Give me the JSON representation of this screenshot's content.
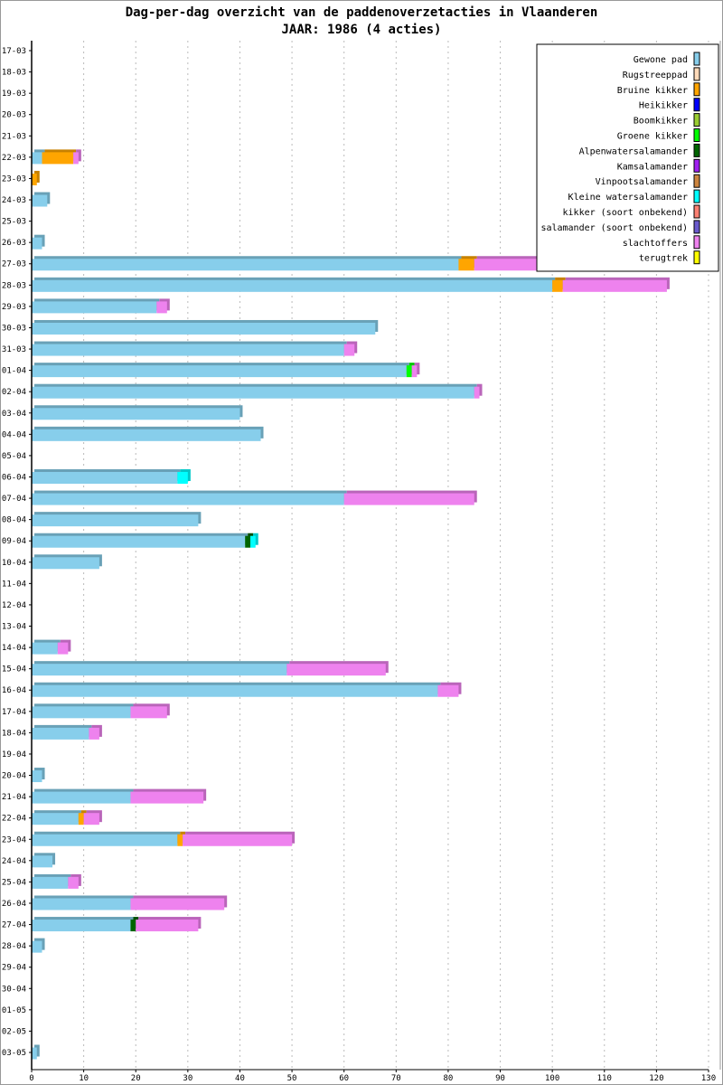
{
  "chart_data": {
    "type": "bar",
    "orientation": "horizontal",
    "stacked": true,
    "title": "Dag-per-dag overzicht van de paddenoverzetacties in Vlaanderen",
    "subtitle": "JAAR: 1986 (4 acties)",
    "xlabel": "",
    "ylabel": "",
    "xlim": [
      0,
      130
    ],
    "xticks": [
      0,
      10,
      20,
      30,
      40,
      50,
      60,
      70,
      80,
      90,
      100,
      110,
      120,
      130
    ],
    "grid": true,
    "legend_position": "top-right",
    "categories": [
      "17-03",
      "18-03",
      "19-03",
      "20-03",
      "21-03",
      "22-03",
      "23-03",
      "24-03",
      "25-03",
      "26-03",
      "27-03",
      "28-03",
      "29-03",
      "30-03",
      "31-03",
      "01-04",
      "02-04",
      "03-04",
      "04-04",
      "05-04",
      "06-04",
      "07-04",
      "08-04",
      "09-04",
      "10-04",
      "11-04",
      "12-04",
      "13-04",
      "14-04",
      "15-04",
      "16-04",
      "17-04",
      "18-04",
      "19-04",
      "20-04",
      "21-04",
      "22-04",
      "23-04",
      "24-04",
      "25-04",
      "26-04",
      "27-04",
      "28-04",
      "29-04",
      "30-04",
      "01-05",
      "02-05",
      "03-05"
    ],
    "series": [
      {
        "name": "Gewone pad",
        "color": "#87CEEB",
        "values": [
          0,
          0,
          0,
          0,
          0,
          2,
          0,
          3,
          0,
          2,
          82,
          100,
          24,
          66,
          60,
          72,
          85,
          40,
          44,
          0,
          28,
          60,
          32,
          41,
          13,
          0,
          0,
          0,
          5,
          49,
          78,
          19,
          11,
          0,
          2,
          19,
          9,
          28,
          4,
          7,
          19,
          19,
          2,
          0,
          0,
          0,
          0,
          1
        ]
      },
      {
        "name": "Rugstreeppad",
        "color": "#FFDAB9",
        "values": [
          0,
          0,
          0,
          0,
          0,
          0,
          0,
          0,
          0,
          0,
          0,
          0,
          0,
          0,
          0,
          0,
          0,
          0,
          0,
          0,
          0,
          0,
          0,
          0,
          0,
          0,
          0,
          0,
          0,
          0,
          0,
          0,
          0,
          0,
          0,
          0,
          0,
          0,
          0,
          0,
          0,
          0,
          0,
          0,
          0,
          0,
          0,
          0
        ]
      },
      {
        "name": "Bruine kikker",
        "color": "#FFA500",
        "values": [
          0,
          0,
          0,
          0,
          0,
          6,
          1,
          0,
          0,
          0,
          3,
          2,
          0,
          0,
          0,
          0,
          0,
          0,
          0,
          0,
          0,
          0,
          0,
          0,
          0,
          0,
          0,
          0,
          0,
          0,
          0,
          0,
          0,
          0,
          0,
          0,
          1,
          1,
          0,
          0,
          0,
          0,
          0,
          0,
          0,
          0,
          0,
          0
        ]
      },
      {
        "name": "Heikikker",
        "color": "#0000FF",
        "values": [
          0,
          0,
          0,
          0,
          0,
          0,
          0,
          0,
          0,
          0,
          0,
          0,
          0,
          0,
          0,
          0,
          0,
          0,
          0,
          0,
          0,
          0,
          0,
          0,
          0,
          0,
          0,
          0,
          0,
          0,
          0,
          0,
          0,
          0,
          0,
          0,
          0,
          0,
          0,
          0,
          0,
          0,
          0,
          0,
          0,
          0,
          0,
          0
        ]
      },
      {
        "name": "Boomkikker",
        "color": "#9ACD32",
        "values": [
          0,
          0,
          0,
          0,
          0,
          0,
          0,
          0,
          0,
          0,
          0,
          0,
          0,
          0,
          0,
          0,
          0,
          0,
          0,
          0,
          0,
          0,
          0,
          0,
          0,
          0,
          0,
          0,
          0,
          0,
          0,
          0,
          0,
          0,
          0,
          0,
          0,
          0,
          0,
          0,
          0,
          0,
          0,
          0,
          0,
          0,
          0,
          0
        ]
      },
      {
        "name": "Groene kikker",
        "color": "#00FF00",
        "values": [
          0,
          0,
          0,
          0,
          0,
          0,
          0,
          0,
          0,
          0,
          0,
          0,
          0,
          0,
          0,
          1,
          0,
          0,
          0,
          0,
          0,
          0,
          0,
          0,
          0,
          0,
          0,
          0,
          0,
          0,
          0,
          0,
          0,
          0,
          0,
          0,
          0,
          0,
          0,
          0,
          0,
          0,
          0,
          0,
          0,
          0,
          0,
          0
        ]
      },
      {
        "name": "Alpenwatersalamander",
        "color": "#006400",
        "values": [
          0,
          0,
          0,
          0,
          0,
          0,
          0,
          0,
          0,
          0,
          0,
          0,
          0,
          0,
          0,
          0,
          0,
          0,
          0,
          0,
          0,
          0,
          0,
          1,
          0,
          0,
          0,
          0,
          0,
          0,
          0,
          0,
          0,
          0,
          0,
          0,
          0,
          0,
          0,
          0,
          0,
          1,
          0,
          0,
          0,
          0,
          0,
          0
        ]
      },
      {
        "name": "Kamsalamander",
        "color": "#A020F0",
        "values": [
          0,
          0,
          0,
          0,
          0,
          0,
          0,
          0,
          0,
          0,
          0,
          0,
          0,
          0,
          0,
          0,
          0,
          0,
          0,
          0,
          0,
          0,
          0,
          0,
          0,
          0,
          0,
          0,
          0,
          0,
          0,
          0,
          0,
          0,
          0,
          0,
          0,
          0,
          0,
          0,
          0,
          0,
          0,
          0,
          0,
          0,
          0,
          0
        ]
      },
      {
        "name": "Vinpootsalamander",
        "color": "#CD853F",
        "values": [
          0,
          0,
          0,
          0,
          0,
          0,
          0,
          0,
          0,
          0,
          0,
          0,
          0,
          0,
          0,
          0,
          0,
          0,
          0,
          0,
          0,
          0,
          0,
          0,
          0,
          0,
          0,
          0,
          0,
          0,
          0,
          0,
          0,
          0,
          0,
          0,
          0,
          0,
          0,
          0,
          0,
          0,
          0,
          0,
          0,
          0,
          0,
          0
        ]
      },
      {
        "name": "Kleine watersalamander",
        "color": "#00FFFF",
        "values": [
          0,
          0,
          0,
          0,
          0,
          0,
          0,
          0,
          0,
          0,
          0,
          0,
          0,
          0,
          0,
          0,
          0,
          0,
          0,
          0,
          2,
          0,
          0,
          1,
          0,
          0,
          0,
          0,
          0,
          0,
          0,
          0,
          0,
          0,
          0,
          0,
          0,
          0,
          0,
          0,
          0,
          0,
          0,
          0,
          0,
          0,
          0,
          0
        ]
      },
      {
        "name": "kikker (soort onbekend)",
        "color": "#FA8072",
        "values": [
          0,
          0,
          0,
          0,
          0,
          0,
          0,
          0,
          0,
          0,
          0,
          0,
          0,
          0,
          0,
          0,
          0,
          0,
          0,
          0,
          0,
          0,
          0,
          0,
          0,
          0,
          0,
          0,
          0,
          0,
          0,
          0,
          0,
          0,
          0,
          0,
          0,
          0,
          0,
          0,
          0,
          0,
          0,
          0,
          0,
          0,
          0,
          0
        ]
      },
      {
        "name": "salamander (soort onbekend)",
        "color": "#6A5ACD",
        "values": [
          0,
          0,
          0,
          0,
          0,
          0,
          0,
          0,
          0,
          0,
          0,
          0,
          0,
          0,
          0,
          0,
          0,
          0,
          0,
          0,
          0,
          0,
          0,
          0,
          0,
          0,
          0,
          0,
          0,
          0,
          0,
          0,
          0,
          0,
          0,
          0,
          0,
          0,
          0,
          0,
          0,
          0,
          0,
          0,
          0,
          0,
          0,
          0
        ]
      },
      {
        "name": "slachtoffers",
        "color": "#EE82EE",
        "values": [
          0,
          0,
          0,
          0,
          0,
          1,
          0,
          0,
          0,
          0,
          14,
          20,
          2,
          0,
          2,
          1,
          1,
          0,
          0,
          0,
          0,
          25,
          0,
          0,
          0,
          0,
          0,
          0,
          2,
          19,
          4,
          7,
          2,
          0,
          0,
          14,
          3,
          21,
          0,
          2,
          18,
          12,
          0,
          0,
          0,
          0,
          0,
          0
        ]
      },
      {
        "name": "terugtrek",
        "color": "#FFFF00",
        "values": [
          0,
          0,
          0,
          0,
          0,
          0,
          0,
          0,
          0,
          0,
          0,
          0,
          0,
          0,
          0,
          0,
          0,
          0,
          0,
          0,
          0,
          0,
          0,
          0,
          0,
          0,
          0,
          0,
          0,
          0,
          0,
          0,
          0,
          0,
          0,
          0,
          0,
          0,
          0,
          0,
          0,
          0,
          0,
          0,
          0,
          0,
          0,
          0
        ]
      }
    ]
  }
}
